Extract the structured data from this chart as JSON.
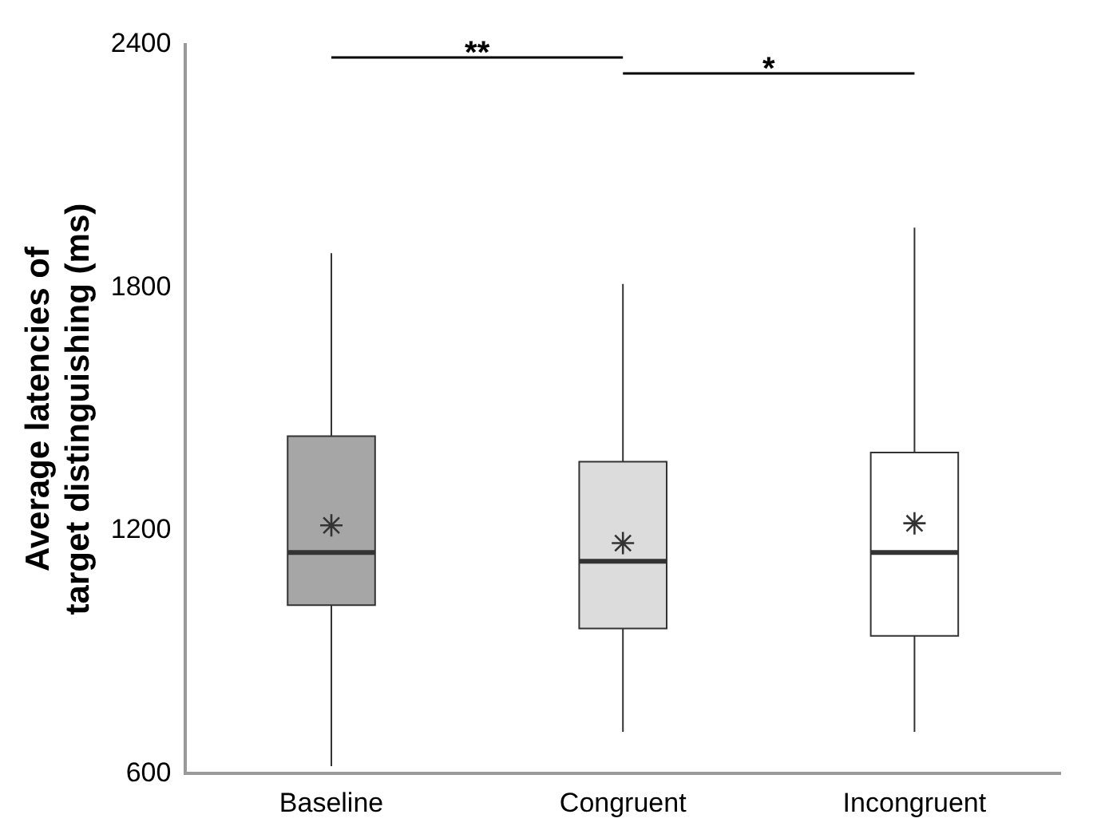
{
  "chart_data": {
    "type": "box",
    "ylabel": "Average latencies of\ntarget distinguishing (ms)",
    "categories": [
      "Baseline",
      "Congruent",
      "Incongruent"
    ],
    "boxes": [
      {
        "low": 618,
        "q1": 1016,
        "median": 1146,
        "q3": 1433,
        "high": 1885,
        "mean": 1213
      },
      {
        "low": 703,
        "q1": 958,
        "median": 1124,
        "q3": 1370,
        "high": 1809,
        "mean": 1169
      },
      {
        "low": 703,
        "q1": 940,
        "median": 1146,
        "q3": 1393,
        "high": 1948,
        "mean": 1218
      }
    ],
    "colors": [
      "#a6a6a6",
      "#dcdcdc",
      "#ffffff"
    ],
    "ylim": [
      600,
      2400
    ],
    "yticks": [
      600,
      1200,
      1800,
      2400
    ],
    "grid": false,
    "marker": "star",
    "annotations": [
      "**",
      "*"
    ]
  }
}
